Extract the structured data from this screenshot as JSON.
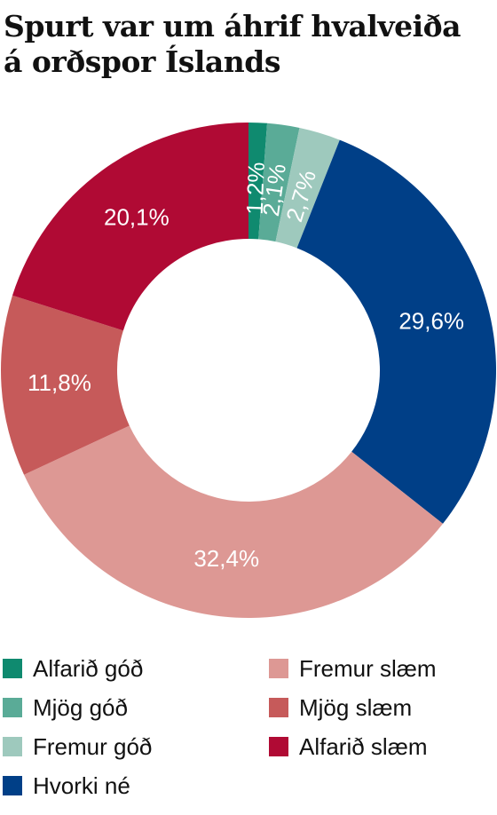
{
  "title": [
    "Spurt var um áhrif hvalveiða",
    "á orðspor Íslands"
  ],
  "chart_data": {
    "type": "pie",
    "donut": true,
    "order": "clockwise from top",
    "slices": [
      {
        "label": "Alfarið góð",
        "value": 1.2,
        "value_label": "1,2%",
        "color": "#0f8a6f"
      },
      {
        "label": "Mjög góð",
        "value": 2.1,
        "value_label": "2,1%",
        "color": "#5aab97"
      },
      {
        "label": "Fremur góð",
        "value": 2.7,
        "value_label": "2,7%",
        "color": "#9ec9bd"
      },
      {
        "label": "Hvorki né",
        "value": 29.6,
        "value_label": "29,6%",
        "color": "#003f87"
      },
      {
        "label": "Fremur slæm",
        "value": 32.4,
        "value_label": "32,4%",
        "color": "#dd9894"
      },
      {
        "label": "Mjög slæm",
        "value": 11.8,
        "value_label": "11,8%",
        "color": "#c65a5a"
      },
      {
        "label": "Alfarið slæm",
        "value": 20.1,
        "value_label": "20,1%",
        "color": "#b00a34"
      }
    ],
    "legend_placement": "bottom",
    "label_color": "#ffffff"
  }
}
